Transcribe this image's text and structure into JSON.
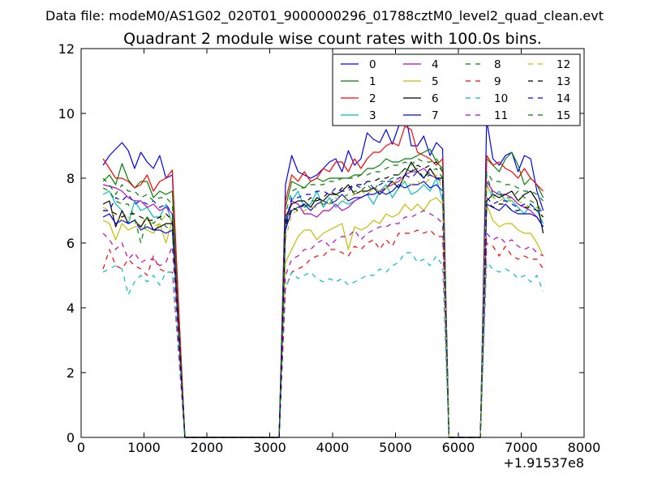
{
  "figure": {
    "suptitle": "Data file: modeM0/AS1G02_020T01_9000000296_01788cztM0_level2_quad_clean.evt"
  },
  "chart_data": {
    "type": "line",
    "title": "Quadrant 2 module wise count rates with 100.0s bins.",
    "xlabel": "",
    "ylabel": "",
    "xlim": [
      0,
      8000
    ],
    "ylim": [
      0,
      12
    ],
    "x_offset_label": "+1.91537e8",
    "x_ticks": [
      0,
      1000,
      2000,
      3000,
      4000,
      5000,
      6000,
      7000,
      8000
    ],
    "y_ticks": [
      0,
      2,
      4,
      6,
      8,
      10,
      12
    ],
    "grid": false,
    "legend_position": "top-right",
    "legend_columns": 4,
    "x": [
      350,
      450,
      550,
      650,
      750,
      850,
      950,
      1050,
      1150,
      1250,
      1350,
      1450,
      1550,
      1650,
      1750,
      1850,
      1950,
      2050,
      2150,
      2250,
      2350,
      2450,
      2550,
      2650,
      2750,
      2850,
      2950,
      3050,
      3150,
      3250,
      3350,
      3450,
      3550,
      3650,
      3750,
      3850,
      3950,
      4050,
      4150,
      4250,
      4350,
      4450,
      4550,
      4650,
      4750,
      4850,
      4950,
      5050,
      5150,
      5250,
      5350,
      5450,
      5550,
      5650,
      5750,
      5850,
      5950,
      6050,
      6150,
      6250,
      6350,
      6450,
      6550,
      6650,
      6750,
      6850,
      6950,
      7050,
      7150,
      7250,
      7350
    ],
    "series": [
      {
        "name": "0",
        "color": "#0000ff",
        "dash": "solid",
        "values": [
          8.4,
          8.7,
          8.9,
          9.1,
          8.85,
          8.3,
          8.8,
          8.5,
          8.3,
          8.7,
          8.0,
          8.1,
          4.0,
          0,
          0,
          0,
          0,
          0,
          0,
          0,
          0,
          0,
          0,
          0,
          0,
          0,
          0,
          0,
          0,
          7.8,
          8.7,
          8.2,
          8.1,
          8.0,
          8.1,
          8.3,
          8.5,
          8.6,
          8.2,
          8.85,
          8.4,
          8.6,
          9.4,
          9.2,
          9.1,
          9.5,
          9.05,
          9.6,
          10.1,
          9.0,
          9.0,
          9.3,
          8.7,
          9.1,
          8.9,
          0,
          0,
          0,
          0,
          0,
          0,
          9.8,
          8.6,
          8.4,
          8.7,
          8.8,
          8.2,
          8.7,
          8.6,
          7.6,
          7.0
        ]
      },
      {
        "name": "1",
        "color": "#008000",
        "dash": "solid",
        "values": [
          7.9,
          8.1,
          7.8,
          8.45,
          7.95,
          7.7,
          7.9,
          7.9,
          7.4,
          7.6,
          7.5,
          7.6,
          3.8,
          0,
          0,
          0,
          0,
          0,
          0,
          0,
          0,
          0,
          0,
          0,
          0,
          0,
          0,
          0,
          0,
          7.1,
          7.9,
          7.8,
          7.7,
          7.9,
          8.0,
          7.9,
          8.0,
          8.0,
          8.0,
          8.0,
          8.1,
          8.1,
          8.3,
          8.3,
          8.4,
          8.6,
          8.5,
          8.5,
          8.6,
          8.6,
          8.7,
          8.8,
          8.9,
          8.5,
          8.3,
          0,
          0,
          0,
          0,
          0,
          0,
          8.6,
          8.4,
          8.2,
          8.6,
          8.8,
          8.4,
          7.8,
          8.0,
          7.8,
          7.4
        ]
      },
      {
        "name": "2",
        "color": "#ff0000",
        "dash": "solid",
        "values": [
          8.6,
          8.3,
          8.0,
          8.0,
          7.9,
          7.7,
          7.8,
          8.1,
          7.6,
          7.9,
          8.0,
          8.25,
          4.1,
          0,
          0,
          0,
          0,
          0,
          0,
          0,
          0,
          0,
          0,
          0,
          0,
          0,
          0,
          0,
          0,
          7.3,
          8.1,
          7.9,
          8.2,
          7.9,
          8.0,
          8.3,
          8.2,
          8.5,
          8.5,
          8.2,
          8.6,
          8.3,
          8.6,
          8.8,
          8.8,
          9.0,
          9.1,
          9.0,
          9.6,
          9.5,
          8.8,
          8.7,
          8.6,
          8.4,
          8.6,
          0,
          0,
          0,
          0,
          0,
          0,
          8.7,
          8.4,
          8.5,
          8.3,
          8.2,
          8.0,
          8.3,
          8.0,
          7.8,
          7.6
        ]
      },
      {
        "name": "3",
        "color": "#00bfbf",
        "dash": "solid",
        "values": [
          7.5,
          7.6,
          7.2,
          7.0,
          6.6,
          7.3,
          7.0,
          7.1,
          6.8,
          6.8,
          7.2,
          6.6,
          3.3,
          0,
          0,
          0,
          0,
          0,
          0,
          0,
          0,
          0,
          0,
          0,
          0,
          0,
          0,
          0,
          0,
          6.5,
          7.3,
          7.6,
          7.1,
          7.2,
          7.6,
          7.1,
          7.4,
          7.1,
          7.3,
          7.2,
          7.3,
          7.4,
          7.5,
          7.2,
          7.6,
          7.8,
          7.4,
          7.7,
          7.9,
          7.5,
          7.6,
          7.8,
          7.6,
          8.0,
          7.3,
          0,
          0,
          0,
          0,
          0,
          0,
          7.8,
          7.4,
          7.6,
          7.3,
          7.3,
          7.1,
          6.9,
          7.2,
          7.0,
          6.6
        ]
      },
      {
        "name": "4",
        "color": "#bf00bf",
        "dash": "solid",
        "values": [
          7.8,
          7.75,
          7.7,
          7.6,
          7.4,
          7.3,
          7.3,
          7.1,
          7.2,
          7.0,
          7.1,
          6.9,
          3.4,
          0,
          0,
          0,
          0,
          0,
          0,
          0,
          0,
          0,
          0,
          0,
          0,
          0,
          0,
          0,
          0,
          6.6,
          7.3,
          7.2,
          6.9,
          6.9,
          6.8,
          7.0,
          7.0,
          7.2,
          7.0,
          7.1,
          7.3,
          7.4,
          7.5,
          7.7,
          7.6,
          7.7,
          7.8,
          7.9,
          8.1,
          8.2,
          8.2,
          8.3,
          8.1,
          8.0,
          8.0,
          0,
          0,
          0,
          0,
          0,
          0,
          7.9,
          7.6,
          7.5,
          7.5,
          7.4,
          7.2,
          7.1,
          7.0,
          6.8,
          6.5
        ]
      },
      {
        "name": "5",
        "color": "#bfbf00",
        "dash": "solid",
        "values": [
          6.7,
          6.6,
          6.1,
          6.6,
          6.4,
          6.5,
          6.5,
          6.4,
          6.3,
          6.6,
          6.0,
          6.7,
          3.3,
          0,
          0,
          0,
          0,
          0,
          0,
          0,
          0,
          0,
          0,
          0,
          0,
          0,
          0,
          0,
          0,
          5.4,
          5.8,
          6.2,
          6.4,
          6.4,
          6.1,
          6.3,
          6.4,
          6.5,
          6.6,
          5.8,
          6.5,
          6.4,
          6.5,
          6.7,
          6.6,
          6.9,
          6.8,
          6.9,
          7.2,
          7.0,
          7.2,
          7.0,
          7.3,
          7.4,
          7.2,
          0,
          0,
          0,
          0,
          0,
          0,
          7.2,
          6.7,
          6.5,
          6.6,
          6.6,
          6.4,
          6.3,
          6.3,
          6.0,
          5.6
        ]
      },
      {
        "name": "6",
        "color": "#000000",
        "dash": "solid",
        "values": [
          7.2,
          7.3,
          6.5,
          7.0,
          6.6,
          6.7,
          6.5,
          6.8,
          6.4,
          6.5,
          6.6,
          6.6,
          3.4,
          0,
          0,
          0,
          0,
          0,
          0,
          0,
          0,
          0,
          0,
          0,
          0,
          0,
          0,
          0,
          0,
          6.8,
          7.2,
          7.3,
          7.3,
          7.1,
          7.4,
          7.3,
          7.5,
          7.5,
          7.6,
          7.8,
          7.5,
          7.6,
          7.6,
          7.7,
          7.5,
          7.7,
          7.9,
          7.7,
          8.1,
          8.5,
          8.2,
          8.0,
          8.3,
          8.0,
          8.0,
          0,
          0,
          0,
          0,
          0,
          0,
          7.3,
          7.5,
          7.4,
          7.5,
          7.6,
          7.3,
          7.5,
          7.6,
          7.3,
          6.3
        ]
      },
      {
        "name": "7",
        "color": "#0000ff",
        "dash": "solid",
        "values": [
          6.8,
          6.9,
          6.6,
          6.7,
          6.6,
          6.7,
          6.4,
          6.5,
          6.4,
          6.4,
          6.3,
          6.4,
          3.2,
          0,
          0,
          0,
          0,
          0,
          0,
          0,
          0,
          0,
          0,
          0,
          0,
          0,
          0,
          0,
          0,
          6.4,
          7.0,
          7.1,
          7.2,
          7.0,
          7.2,
          7.3,
          7.2,
          7.3,
          7.5,
          7.3,
          7.4,
          7.4,
          7.5,
          7.5,
          7.6,
          7.5,
          7.6,
          7.8,
          7.7,
          7.8,
          7.8,
          7.9,
          7.7,
          7.8,
          7.6,
          0,
          0,
          0,
          0,
          0,
          0,
          7.2,
          7.1,
          7.0,
          7.2,
          7.0,
          6.9,
          6.9,
          6.9,
          6.8,
          6.5
        ]
      },
      {
        "name": "8",
        "color": "#008000",
        "dash": "dashed",
        "values": [
          7.7,
          7.6,
          7.3,
          7.2,
          7.2,
          6.8,
          6.0,
          6.8,
          6.6,
          6.8,
          6.5,
          6.4,
          3.2,
          0,
          0,
          0,
          0,
          0,
          0,
          0,
          0,
          0,
          0,
          0,
          0,
          0,
          0,
          0,
          0,
          6.6,
          7.0,
          7.1,
          7.1,
          7.3,
          7.3,
          7.2,
          7.2,
          7.5,
          7.4,
          7.5,
          7.6,
          7.6,
          7.8,
          7.6,
          7.9,
          7.9,
          8.0,
          8.1,
          8.3,
          8.2,
          8.3,
          8.0,
          8.2,
          8.3,
          8.0,
          0,
          0,
          0,
          0,
          0,
          0,
          8.1,
          7.5,
          7.5,
          7.4,
          7.4,
          7.6,
          7.4,
          7.3,
          7.2,
          6.9
        ]
      },
      {
        "name": "9",
        "color": "#ff0000",
        "dash": "dashed",
        "values": [
          5.2,
          5.8,
          5.3,
          5.2,
          5.5,
          5.3,
          5.2,
          5.0,
          5.6,
          5.2,
          5.1,
          5.1,
          2.6,
          0,
          0,
          0,
          0,
          0,
          0,
          0,
          0,
          0,
          0,
          0,
          0,
          0,
          0,
          0,
          0,
          4.6,
          5.1,
          5.2,
          5.3,
          5.5,
          5.6,
          5.6,
          5.8,
          5.8,
          5.7,
          5.6,
          5.9,
          5.8,
          6.0,
          6.1,
          5.8,
          6.1,
          5.9,
          6.3,
          6.3,
          6.3,
          6.4,
          6.3,
          6.4,
          6.2,
          6.2,
          0,
          0,
          0,
          0,
          0,
          0,
          6.0,
          5.9,
          5.6,
          5.9,
          5.6,
          5.5,
          5.6,
          5.5,
          5.5,
          5.2
        ]
      },
      {
        "name": "10",
        "color": "#00bfbf",
        "dash": "dashed",
        "values": [
          5.1,
          5.2,
          5.3,
          5.2,
          4.4,
          4.8,
          5.0,
          4.8,
          5.0,
          4.7,
          5.1,
          5.1,
          2.6,
          0,
          0,
          0,
          0,
          0,
          0,
          0,
          0,
          0,
          0,
          0,
          0,
          0,
          0,
          0,
          0,
          4.6,
          5.1,
          4.9,
          5.0,
          5.1,
          4.9,
          4.8,
          4.9,
          4.8,
          4.9,
          4.7,
          4.8,
          4.9,
          5.0,
          5.0,
          5.2,
          5.1,
          5.3,
          5.4,
          5.7,
          5.7,
          5.4,
          5.5,
          5.3,
          5.6,
          5.3,
          0,
          0,
          0,
          0,
          0,
          0,
          5.4,
          5.2,
          5.1,
          5.2,
          5.1,
          4.9,
          5.0,
          4.8,
          5.0,
          4.5
        ]
      },
      {
        "name": "11",
        "color": "#bf00bf",
        "dash": "dashed",
        "values": [
          6.3,
          6.1,
          5.8,
          6.0,
          5.5,
          5.7,
          5.4,
          5.5,
          5.5,
          5.3,
          5.4,
          5.9,
          2.9,
          0,
          0,
          0,
          0,
          0,
          0,
          0,
          0,
          0,
          0,
          0,
          0,
          0,
          0,
          0,
          0,
          5.0,
          5.5,
          5.6,
          5.8,
          5.8,
          6.0,
          6.1,
          5.9,
          6.1,
          6.2,
          6.2,
          6.4,
          6.1,
          6.3,
          6.4,
          6.5,
          6.5,
          6.6,
          6.6,
          6.8,
          6.8,
          6.9,
          7.0,
          6.9,
          6.8,
          6.6,
          0,
          0,
          0,
          0,
          0,
          0,
          6.3,
          6.1,
          6.2,
          6.0,
          6.1,
          5.9,
          5.8,
          5.9,
          5.7,
          5.6
        ]
      },
      {
        "name": "12",
        "color": "#bfbf00",
        "dash": "dashed",
        "values": [
          7.1,
          7.0,
          6.8,
          6.7,
          6.8,
          6.6,
          6.6,
          6.8,
          6.5,
          6.6,
          6.9,
          6.7,
          3.3,
          0,
          0,
          0,
          0,
          0,
          0,
          0,
          0,
          0,
          0,
          0,
          0,
          0,
          0,
          0,
          0,
          6.1,
          6.9,
          7.0,
          7.0,
          7.1,
          7.1,
          7.3,
          7.2,
          7.4,
          7.3,
          7.4,
          7.5,
          7.6,
          7.5,
          7.7,
          7.6,
          7.7,
          7.8,
          8.0,
          7.9,
          7.8,
          7.9,
          7.8,
          8.0,
          8.1,
          7.7,
          0,
          0,
          0,
          0,
          0,
          0,
          7.8,
          7.4,
          7.3,
          7.4,
          7.3,
          7.3,
          7.2,
          7.1,
          7.1,
          6.8
        ]
      },
      {
        "name": "13",
        "color": "#000000",
        "dash": "dashed",
        "values": [
          7.0,
          7.0,
          6.9,
          6.8,
          6.9,
          6.9,
          6.8,
          6.7,
          6.7,
          6.8,
          6.9,
          6.7,
          3.3,
          0,
          0,
          0,
          0,
          0,
          0,
          0,
          0,
          0,
          0,
          0,
          0,
          0,
          0,
          0,
          0,
          6.5,
          7.1,
          7.0,
          7.2,
          7.4,
          7.3,
          7.4,
          7.6,
          7.5,
          7.7,
          7.7,
          7.8,
          7.8,
          7.9,
          7.9,
          8.0,
          8.0,
          8.1,
          8.1,
          8.3,
          8.2,
          8.4,
          8.3,
          8.4,
          8.5,
          8.2,
          0,
          0,
          0,
          0,
          0,
          0,
          7.3,
          7.1,
          7.2,
          7.2,
          7.0,
          7.0,
          7.1,
          7.1,
          7.0,
          6.8
        ]
      },
      {
        "name": "14",
        "color": "#0000ff",
        "dash": "dashed",
        "values": [
          7.0,
          7.0,
          7.4,
          7.3,
          7.5,
          7.2,
          7.3,
          7.2,
          7.3,
          7.1,
          7.2,
          6.9,
          3.4,
          0,
          0,
          0,
          0,
          0,
          0,
          0,
          0,
          0,
          0,
          0,
          0,
          0,
          0,
          0,
          0,
          6.6,
          7.4,
          7.4,
          7.5,
          7.5,
          7.6,
          7.6,
          7.5,
          7.7,
          7.6,
          7.6,
          7.8,
          7.7,
          7.9,
          7.7,
          7.8,
          7.9,
          7.9,
          8.0,
          8.1,
          8.0,
          8.2,
          8.0,
          8.1,
          8.0,
          7.9,
          0,
          0,
          0,
          0,
          0,
          0,
          7.4,
          7.2,
          7.3,
          7.3,
          7.2,
          7.1,
          7.2,
          7.2,
          7.0,
          7.0
        ]
      },
      {
        "name": "15",
        "color": "#008000",
        "dash": "dashed",
        "values": [
          8.0,
          7.8,
          7.5,
          7.8,
          7.6,
          7.6,
          7.4,
          7.5,
          7.3,
          7.4,
          7.4,
          7.2,
          3.6,
          0,
          0,
          0,
          0,
          0,
          0,
          0,
          0,
          0,
          0,
          0,
          0,
          0,
          0,
          0,
          0,
          6.9,
          7.6,
          7.7,
          7.7,
          7.8,
          7.8,
          7.8,
          7.9,
          7.9,
          8.0,
          8.0,
          8.0,
          8.1,
          8.1,
          8.2,
          8.2,
          8.3,
          8.4,
          8.4,
          8.5,
          8.4,
          8.6,
          8.5,
          8.5,
          8.6,
          8.3,
          0,
          0,
          0,
          0,
          0,
          0,
          8.2,
          7.9,
          7.9,
          7.8,
          7.8,
          7.7,
          7.6,
          7.6,
          7.5,
          7.3
        ]
      }
    ]
  }
}
